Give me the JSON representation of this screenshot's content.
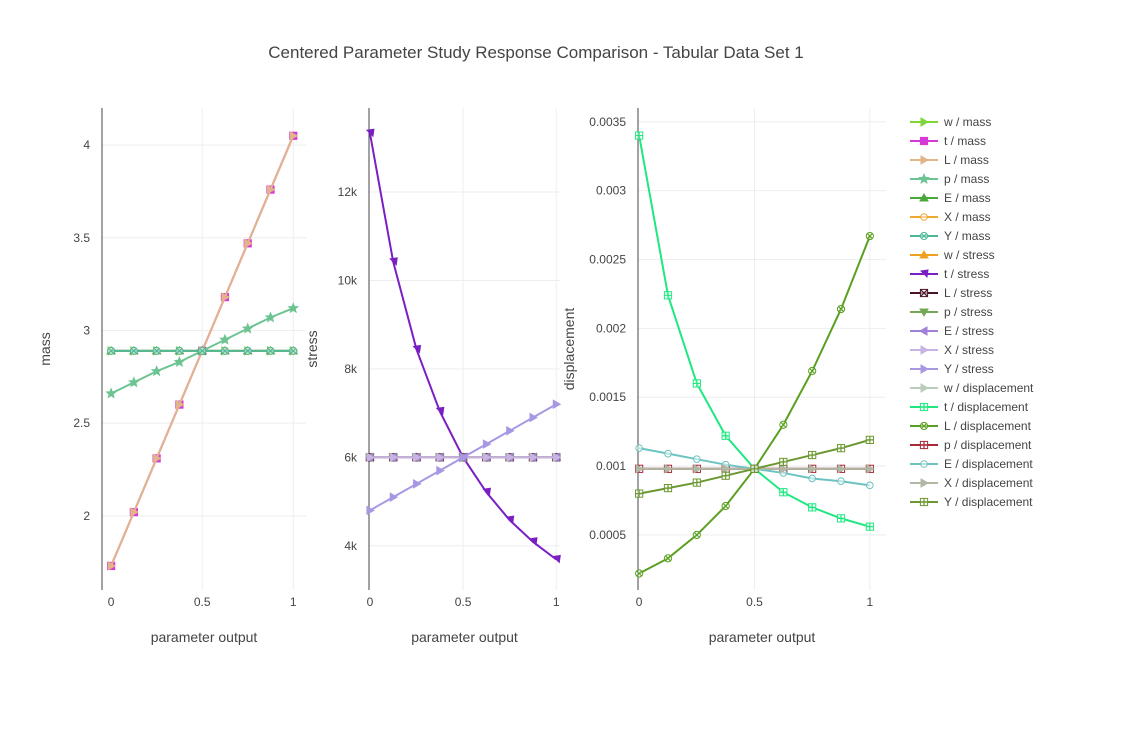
{
  "chart_data": {
    "type": "line",
    "title": "Centered Parameter Study Response Comparison - Tabular Data Set 1",
    "x": [
      0,
      0.125,
      0.25,
      0.375,
      0.5,
      0.625,
      0.75,
      0.875,
      1
    ],
    "xlabel": "parameter output",
    "grid": true,
    "legend_position": "right",
    "subplots": [
      {
        "id": "mass",
        "ylabel": "mass",
        "xlim": [
          -0.05,
          1.07
        ],
        "ylim": [
          1.6,
          4.2
        ],
        "xticks": [
          {
            "v": 0,
            "label": "0"
          },
          {
            "v": 0.5,
            "label": "0.5"
          },
          {
            "v": 1,
            "label": "1"
          }
        ],
        "yticks": [
          {
            "v": 2,
            "label": "2"
          },
          {
            "v": 2.5,
            "label": "2.5"
          },
          {
            "v": 3,
            "label": "3"
          },
          {
            "v": 3.5,
            "label": "3.5"
          },
          {
            "v": 4,
            "label": "4"
          }
        ]
      },
      {
        "id": "stress",
        "ylabel": "stress",
        "xlim": [
          -0.005,
          1.02
        ],
        "ylim": [
          3000,
          13900
        ],
        "xticks": [
          {
            "v": 0,
            "label": "0"
          },
          {
            "v": 0.5,
            "label": "0.5"
          },
          {
            "v": 1,
            "label": "1"
          }
        ],
        "yticks": [
          {
            "v": 4000,
            "label": "4k"
          },
          {
            "v": 6000,
            "label": "6k"
          },
          {
            "v": 8000,
            "label": "8k"
          },
          {
            "v": 10000,
            "label": "10k"
          },
          {
            "v": 12000,
            "label": "12k"
          }
        ]
      },
      {
        "id": "displacement",
        "ylabel": "displacement",
        "xlim": [
          -0.005,
          1.07
        ],
        "ylim": [
          0.0001,
          0.0036
        ],
        "xticks": [
          {
            "v": 0,
            "label": "0"
          },
          {
            "v": 0.5,
            "label": "0.5"
          },
          {
            "v": 1,
            "label": "1"
          }
        ],
        "yticks": [
          {
            "v": 0.0005,
            "label": "0.0005"
          },
          {
            "v": 0.001,
            "label": "0.001"
          },
          {
            "v": 0.0015,
            "label": "0.0015"
          },
          {
            "v": 0.002,
            "label": "0.002"
          },
          {
            "v": 0.0025,
            "label": "0.0025"
          },
          {
            "v": 0.003,
            "label": "0.003"
          },
          {
            "v": 0.0035,
            "label": "0.0035"
          }
        ]
      }
    ],
    "series": [
      {
        "name": "w / mass",
        "subplot": "mass",
        "color": "#7fd63a",
        "marker": "triangle-right",
        "values": [
          2.89,
          2.89,
          2.89,
          2.89,
          2.89,
          2.89,
          2.89,
          2.89,
          2.89
        ]
      },
      {
        "name": "t / mass",
        "subplot": "mass",
        "color": "#d63ad6",
        "marker": "square",
        "values": [
          1.73,
          2.02,
          2.31,
          2.6,
          2.89,
          3.18,
          3.47,
          3.76,
          4.05
        ]
      },
      {
        "name": "L / mass",
        "subplot": "mass",
        "color": "#e2b48a",
        "marker": "triangle-right",
        "values": [
          1.73,
          2.02,
          2.31,
          2.6,
          2.89,
          3.18,
          3.47,
          3.76,
          4.05
        ]
      },
      {
        "name": "p / mass",
        "subplot": "mass",
        "color": "#6dc493",
        "marker": "star",
        "values": [
          2.66,
          2.72,
          2.78,
          2.83,
          2.89,
          2.95,
          3.01,
          3.07,
          3.12
        ]
      },
      {
        "name": "E / mass",
        "subplot": "mass",
        "color": "#4aa83a",
        "marker": "triangle-up",
        "values": [
          2.89,
          2.89,
          2.89,
          2.89,
          2.89,
          2.89,
          2.89,
          2.89,
          2.89
        ]
      },
      {
        "name": "X / mass",
        "subplot": "mass",
        "color": "#f0a830",
        "marker": "circle",
        "values": [
          2.89,
          2.89,
          2.89,
          2.89,
          2.89,
          2.89,
          2.89,
          2.89,
          2.89
        ]
      },
      {
        "name": "Y / mass",
        "subplot": "mass",
        "color": "#4fb89a",
        "marker": "circle-x",
        "values": [
          2.89,
          2.89,
          2.89,
          2.89,
          2.89,
          2.89,
          2.89,
          2.89,
          2.89
        ]
      },
      {
        "name": "w / stress",
        "subplot": "stress",
        "color": "#f0a020",
        "marker": "triangle-up",
        "values": [
          6000,
          6000,
          6000,
          6000,
          6000,
          6000,
          6000,
          6000,
          6000
        ]
      },
      {
        "name": "t / stress",
        "subplot": "stress",
        "color": "#7a1fc4",
        "marker": "triangle-ne",
        "values": [
          13330,
          10420,
          8440,
          7040,
          6000,
          5210,
          4580,
          4090,
          3690
        ]
      },
      {
        "name": "L / stress",
        "subplot": "stress",
        "color": "#4a1428",
        "marker": "square-x",
        "values": [
          6000,
          6000,
          6000,
          6000,
          6000,
          6000,
          6000,
          6000,
          6000
        ]
      },
      {
        "name": "p / stress",
        "subplot": "stress",
        "color": "#74a856",
        "marker": "triangle-down",
        "values": [
          6000,
          6000,
          6000,
          6000,
          6000,
          6000,
          6000,
          6000,
          6000
        ]
      },
      {
        "name": "E / stress",
        "subplot": "stress",
        "color": "#a080d8",
        "marker": "triangle-left",
        "values": [
          6000,
          6000,
          6000,
          6000,
          6000,
          6000,
          6000,
          6000,
          6000
        ]
      },
      {
        "name": "X / stress",
        "subplot": "stress",
        "color": "#c8b4e4",
        "marker": "triangle-right",
        "values": [
          6000,
          6000,
          6000,
          6000,
          6000,
          6000,
          6000,
          6000,
          6000
        ]
      },
      {
        "name": "Y / stress",
        "subplot": "stress",
        "color": "#a898e4",
        "marker": "triangle-right",
        "values": [
          4800,
          5100,
          5400,
          5700,
          6000,
          6300,
          6600,
          6900,
          7200
        ]
      },
      {
        "name": "w / displacement",
        "subplot": "displacement",
        "color": "#bcccbc",
        "marker": "triangle-right",
        "values": [
          0.00098,
          0.00098,
          0.00098,
          0.00098,
          0.00098,
          0.00098,
          0.00098,
          0.00098,
          0.00098
        ]
      },
      {
        "name": "t / displacement",
        "subplot": "displacement",
        "color": "#1fe880",
        "marker": "square-plus",
        "values": [
          0.0034,
          0.00224,
          0.0016,
          0.00122,
          0.00098,
          0.00081,
          0.0007,
          0.00062,
          0.00056
        ]
      },
      {
        "name": "L / displacement",
        "subplot": "displacement",
        "color": "#5aa020",
        "marker": "circle-x",
        "values": [
          0.00022,
          0.00033,
          0.0005,
          0.00071,
          0.00098,
          0.0013,
          0.00169,
          0.00214,
          0.00267
        ]
      },
      {
        "name": "p / displacement",
        "subplot": "displacement",
        "color": "#a82838",
        "marker": "square-plus",
        "values": [
          0.00098,
          0.00098,
          0.00098,
          0.00098,
          0.00098,
          0.00098,
          0.00098,
          0.00098,
          0.00098
        ]
      },
      {
        "name": "E / displacement",
        "subplot": "displacement",
        "color": "#6cc4c0",
        "marker": "circle",
        "values": [
          0.00113,
          0.00109,
          0.00105,
          0.00101,
          0.00098,
          0.00095,
          0.00091,
          0.00089,
          0.00086
        ]
      },
      {
        "name": "X / displacement",
        "subplot": "displacement",
        "color": "#b0b8a4",
        "marker": "triangle-right",
        "values": [
          0.00098,
          0.00098,
          0.00098,
          0.00098,
          0.00098,
          0.00098,
          0.00098,
          0.00098,
          0.00098
        ]
      },
      {
        "name": "Y / displacement",
        "subplot": "displacement",
        "color": "#6c9830",
        "marker": "square-plus",
        "values": [
          0.0008,
          0.00084,
          0.00088,
          0.00093,
          0.00098,
          0.00103,
          0.00108,
          0.00113,
          0.00119
        ]
      }
    ]
  }
}
